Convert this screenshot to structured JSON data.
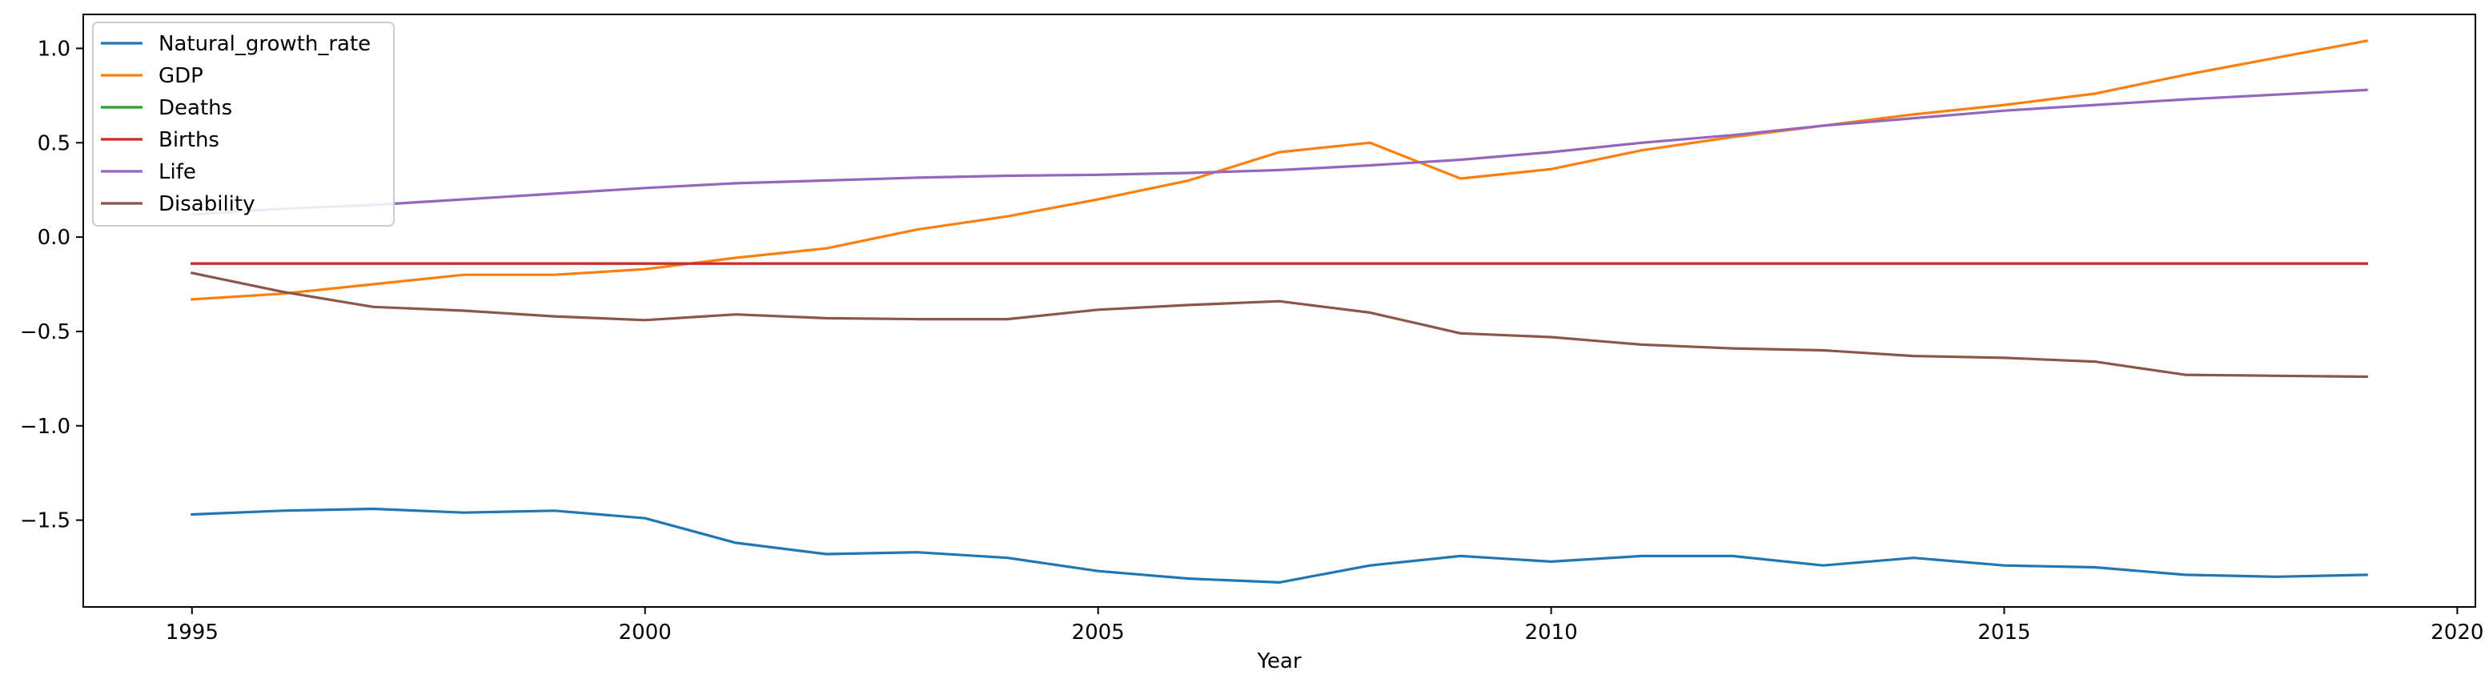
{
  "chart_data": {
    "type": "line",
    "title": "",
    "xlabel": "Year",
    "ylabel": "",
    "xlim": [
      1993.8,
      2020.2
    ],
    "ylim": [
      -1.96,
      1.18
    ],
    "xticks": [
      1995,
      2000,
      2005,
      2010,
      2015,
      2020
    ],
    "xtick_labels": [
      "1995",
      "2000",
      "2005",
      "2010",
      "2015",
      "2020"
    ],
    "yticks": [
      1.0,
      0.5,
      0.0,
      -0.5,
      -1.0,
      -1.5
    ],
    "ytick_labels": [
      "1.0",
      "0.5",
      "0.0",
      "−0.5",
      "−1.0",
      "−1.5"
    ],
    "grid": false,
    "legend_position": "top-left",
    "x": [
      1995,
      1996,
      1997,
      1998,
      1999,
      2000,
      2001,
      2002,
      2003,
      2004,
      2005,
      2006,
      2007,
      2008,
      2009,
      2010,
      2011,
      2012,
      2013,
      2014,
      2015,
      2016,
      2017,
      2018,
      2019
    ],
    "series": [
      {
        "name": "Natural_growth_rate",
        "color": "#1f77b4",
        "values": [
          -1.47,
          -1.45,
          -1.44,
          -1.46,
          -1.45,
          -1.49,
          -1.62,
          -1.68,
          -1.67,
          -1.7,
          -1.77,
          -1.81,
          -1.83,
          -1.74,
          -1.69,
          -1.72,
          -1.69,
          -1.69,
          -1.74,
          -1.7,
          -1.74,
          -1.75,
          -1.79,
          -1.8,
          -1.79
        ]
      },
      {
        "name": "GDP",
        "color": "#ff7f0e",
        "values": [
          -0.33,
          -0.3,
          -0.25,
          -0.2,
          -0.2,
          -0.17,
          -0.11,
          -0.06,
          0.04,
          0.11,
          0.2,
          0.3,
          0.45,
          0.5,
          0.31,
          0.36,
          0.46,
          0.53,
          0.59,
          0.65,
          0.7,
          0.76,
          0.86,
          0.95,
          1.04
        ]
      },
      {
        "name": "Deaths",
        "color": "#2ca02c",
        "values": [
          -0.14,
          -0.14,
          -0.14,
          -0.14,
          -0.14,
          -0.14,
          -0.14,
          -0.14,
          -0.14,
          -0.14,
          -0.14,
          -0.14,
          -0.14,
          -0.14,
          -0.14,
          -0.14,
          -0.14,
          -0.14,
          -0.14,
          -0.14,
          -0.14,
          -0.14,
          -0.14,
          -0.14,
          -0.14
        ]
      },
      {
        "name": "Births",
        "color": "#d62728",
        "values": [
          -0.14,
          -0.14,
          -0.14,
          -0.14,
          -0.14,
          -0.14,
          -0.14,
          -0.14,
          -0.14,
          -0.14,
          -0.14,
          -0.14,
          -0.14,
          -0.14,
          -0.14,
          -0.14,
          -0.14,
          -0.14,
          -0.14,
          -0.14,
          -0.14,
          -0.14,
          -0.14,
          -0.14,
          -0.14
        ]
      },
      {
        "name": "Life",
        "color": "#9467bd",
        "values": [
          0.12,
          0.15,
          0.17,
          0.2,
          0.23,
          0.26,
          0.285,
          0.3,
          0.315,
          0.325,
          0.33,
          0.34,
          0.355,
          0.38,
          0.41,
          0.45,
          0.5,
          0.54,
          0.59,
          0.63,
          0.67,
          0.7,
          0.73,
          0.755,
          0.78
        ]
      },
      {
        "name": "Disability",
        "color": "#8c564b",
        "values": [
          -0.19,
          -0.29,
          -0.37,
          -0.39,
          -0.42,
          -0.44,
          -0.41,
          -0.43,
          -0.435,
          -0.435,
          -0.385,
          -0.36,
          -0.34,
          -0.4,
          -0.51,
          -0.53,
          -0.57,
          -0.59,
          -0.6,
          -0.63,
          -0.64,
          -0.66,
          -0.73,
          -0.735,
          -0.74
        ]
      }
    ]
  }
}
